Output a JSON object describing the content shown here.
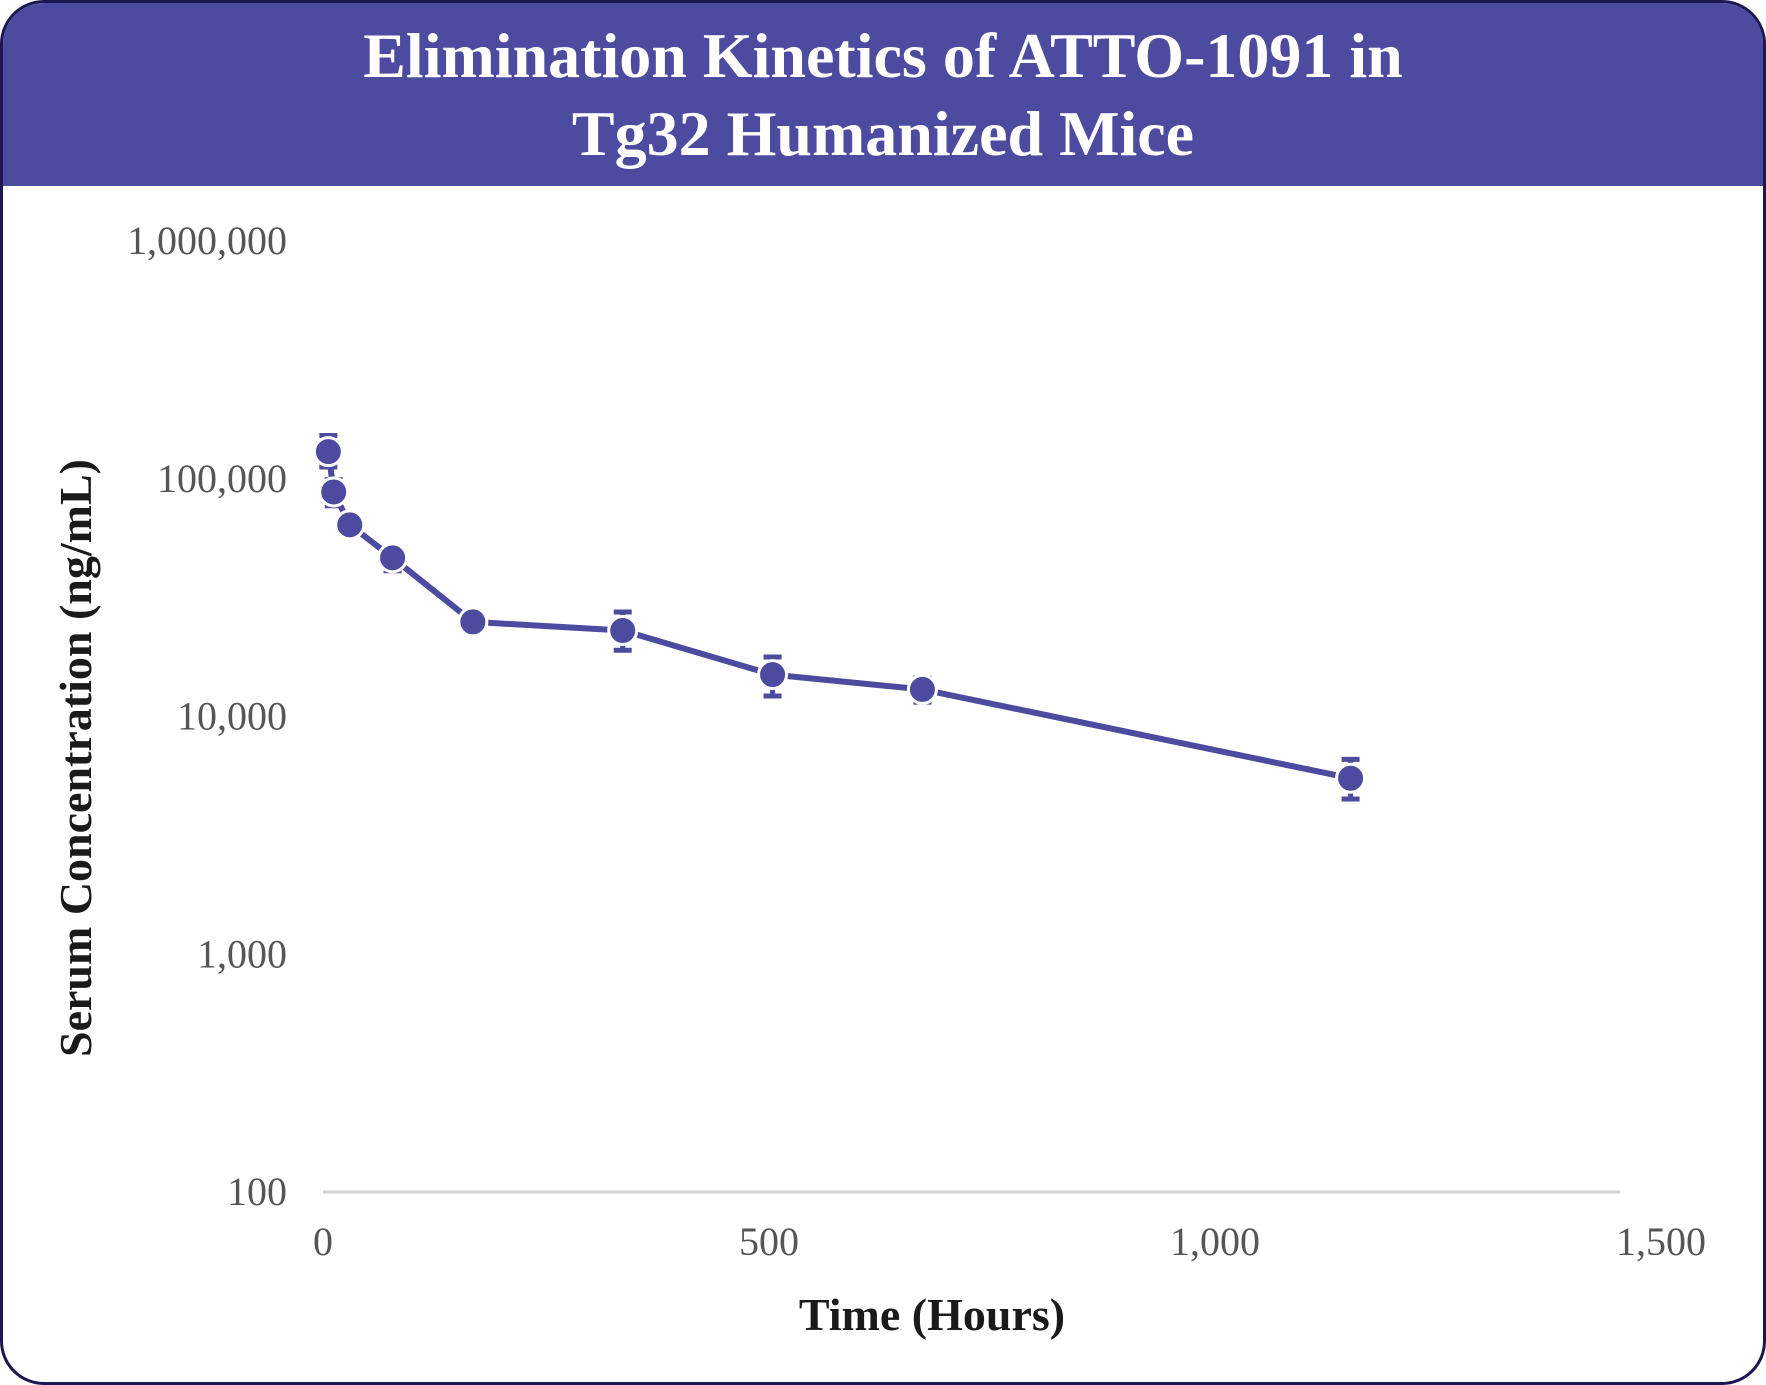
{
  "chart_data": {
    "type": "line",
    "title_lines": [
      "Elimination Kinetics of ATTO-1091 in",
      "Tg32 Humanized Mice"
    ],
    "xlabel": "Time (Hours)",
    "ylabel": "Serum Concentration (ng/mL)",
    "xlim": [
      0,
      1500
    ],
    "ylim": [
      100,
      1000000
    ],
    "y_scale": "log",
    "x_ticks": [
      0,
      500,
      1000,
      1500
    ],
    "x_tick_labels": [
      "0",
      "500",
      "1,000",
      "1,500"
    ],
    "y_ticks": [
      100,
      1000,
      10000,
      100000,
      1000000
    ],
    "y_tick_labels": [
      "100",
      "1,000",
      "10,000",
      "100,000",
      "1,000,000"
    ],
    "grid": false,
    "legend": "none",
    "series": [
      {
        "color": "#4c4b9f",
        "points": [
          {
            "x": 6,
            "y": 130000,
            "err_low": 112000,
            "err_high": 152000
          },
          {
            "x": 12,
            "y": 88000,
            "err_low": 77000,
            "err_high": 99000
          },
          {
            "x": 30,
            "y": 64000,
            "err_low": 60000,
            "err_high": 67000
          },
          {
            "x": 78,
            "y": 46500,
            "err_low": 41000,
            "err_high": 50000
          },
          {
            "x": 168,
            "y": 25000,
            "err_low": 23500,
            "err_high": 26500
          },
          {
            "x": 336,
            "y": 23000,
            "err_low": 19000,
            "err_high": 27500
          },
          {
            "x": 504,
            "y": 15000,
            "err_low": 12200,
            "err_high": 17800
          },
          {
            "x": 672,
            "y": 13000,
            "err_low": 11500,
            "err_high": 14500
          },
          {
            "x": 1152,
            "y": 5500,
            "err_low": 4500,
            "err_high": 6600
          }
        ]
      }
    ]
  }
}
